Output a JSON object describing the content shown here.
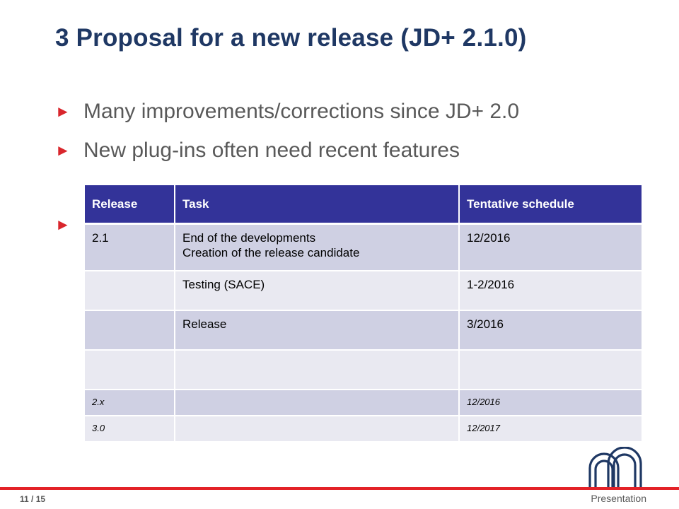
{
  "slide": {
    "title": "3 Proposal for a new release (JD+ 2.1.0)",
    "bullets": [
      "Many improvements/corrections since JD+ 2.0",
      "New plug-ins often need recent features",
      ""
    ],
    "bullet_marker": "►"
  },
  "table": {
    "headers": [
      "Release",
      "Task",
      "Tentative schedule"
    ],
    "rows": [
      {
        "release": "2.1",
        "task_line1": "End of the developments",
        "task_line2": "Creation of the release candidate",
        "schedule": "12/2016"
      },
      {
        "release": "",
        "task_line1": "Testing (SACE)",
        "task_line2": "",
        "schedule": "1-2/2016"
      },
      {
        "release": "",
        "task_line1": "Release",
        "task_line2": "",
        "schedule": "3/2016"
      },
      {
        "release": "",
        "task_line1": "",
        "task_line2": "",
        "schedule": ""
      },
      {
        "release": "2.x",
        "task_line1": "",
        "task_line2": "",
        "schedule": "12/2016"
      },
      {
        "release": "3.0",
        "task_line1": "",
        "task_line2": "",
        "schedule": "12/2017"
      }
    ]
  },
  "footer": {
    "page": "11 / 15",
    "label": "Presentation"
  },
  "colors": {
    "title": "#1f3864",
    "accent_red": "#e32228",
    "table_header": "#333399",
    "row_dark": "#cfd0e3",
    "row_light": "#e9e9f1",
    "logo_blue": "#1f3864"
  },
  "icons": {
    "logo": "nbb-arches-logo"
  }
}
